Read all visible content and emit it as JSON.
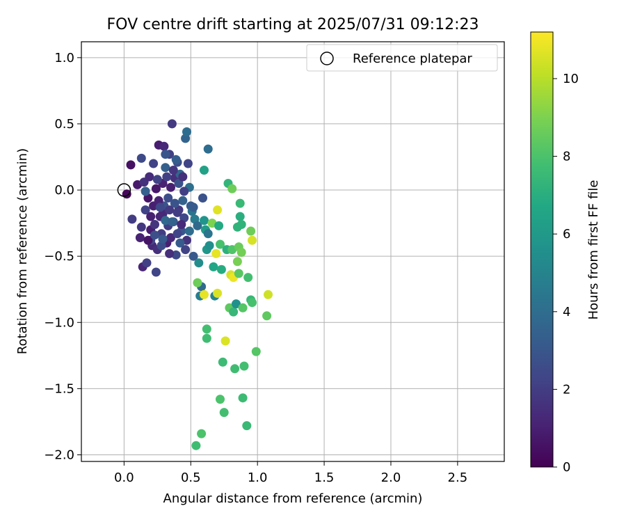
{
  "chart_data": {
    "type": "scatter",
    "title": "FOV centre drift starting at 2025/07/31 09:12:23",
    "xlabel": "Angular distance from reference (arcmin)",
    "ylabel": "Rotation from reference (arcmin)",
    "xlim": [
      -0.32,
      2.85
    ],
    "ylim": [
      -2.05,
      1.12
    ],
    "xticks": [
      0.0,
      0.5,
      1.0,
      1.5,
      2.0,
      2.5
    ],
    "xtick_labels": [
      "0.0",
      "0.5",
      "1.0",
      "1.5",
      "2.0",
      "2.5"
    ],
    "yticks": [
      1.0,
      0.5,
      0.0,
      -0.5,
      -1.0,
      -1.5,
      -2.0
    ],
    "ytick_labels": [
      "1.0",
      "0.5",
      "0.0",
      "−0.5",
      "−1.0",
      "−1.5",
      "−2.0"
    ],
    "grid": true,
    "legend": {
      "position": "top-right",
      "entries": [
        "Reference platepar"
      ]
    },
    "reference": {
      "x": 0.0,
      "y": 0.0,
      "marker": "open-circle",
      "color": "#000000"
    },
    "colorbar": {
      "label": "Hours from first FF file",
      "colormap": "viridis",
      "range": [
        0,
        11.2
      ],
      "ticks": [
        0,
        2,
        4,
        6,
        8,
        10
      ],
      "tick_labels": [
        "0",
        "2",
        "4",
        "6",
        "8",
        "10"
      ]
    },
    "points": [
      {
        "x": 0.02,
        "y": -0.03,
        "h": 0.2
      },
      {
        "x": 0.05,
        "y": 0.19,
        "h": 0.5
      },
      {
        "x": 0.06,
        "y": -0.22,
        "h": 2.0
      },
      {
        "x": 0.1,
        "y": 0.04,
        "h": 0.8
      },
      {
        "x": 0.12,
        "y": -0.36,
        "h": 1.1
      },
      {
        "x": 0.13,
        "y": 0.24,
        "h": 2.5
      },
      {
        "x": 0.14,
        "y": -0.58,
        "h": 1.2
      },
      {
        "x": 0.15,
        "y": 0.06,
        "h": 1.6
      },
      {
        "x": 0.16,
        "y": -0.15,
        "h": 2.2
      },
      {
        "x": 0.17,
        "y": -0.55,
        "h": 2.1
      },
      {
        "x": 0.18,
        "y": -0.06,
        "h": 0.6
      },
      {
        "x": 0.19,
        "y": 0.1,
        "h": 1.4
      },
      {
        "x": 0.2,
        "y": -0.3,
        "h": 0.9
      },
      {
        "x": 0.21,
        "y": -0.42,
        "h": 1.3
      },
      {
        "x": 0.22,
        "y": -0.12,
        "h": 1.0
      },
      {
        "x": 0.23,
        "y": -0.26,
        "h": 1.7
      },
      {
        "x": 0.24,
        "y": 0.01,
        "h": 0.7
      },
      {
        "x": 0.24,
        "y": -0.62,
        "h": 2.3
      },
      {
        "x": 0.25,
        "y": -0.45,
        "h": 1.5
      },
      {
        "x": 0.26,
        "y": 0.34,
        "h": 0.9
      },
      {
        "x": 0.27,
        "y": -0.2,
        "h": 1.2
      },
      {
        "x": 0.28,
        "y": -0.33,
        "h": 2.0
      },
      {
        "x": 0.29,
        "y": 0.05,
        "h": 1.1
      },
      {
        "x": 0.3,
        "y": -0.12,
        "h": 2.9
      },
      {
        "x": 0.31,
        "y": 0.17,
        "h": 3.4
      },
      {
        "x": 0.32,
        "y": -0.4,
        "h": 1.0
      },
      {
        "x": 0.33,
        "y": -0.06,
        "h": 2.6
      },
      {
        "x": 0.34,
        "y": 0.27,
        "h": 2.1
      },
      {
        "x": 0.35,
        "y": -0.36,
        "h": 1.3
      },
      {
        "x": 0.36,
        "y": 0.5,
        "h": 1.9
      },
      {
        "x": 0.37,
        "y": -0.24,
        "h": 2.8
      },
      {
        "x": 0.38,
        "y": 0.09,
        "h": 1.5
      },
      {
        "x": 0.39,
        "y": -0.49,
        "h": 2.5
      },
      {
        "x": 0.4,
        "y": 0.21,
        "h": 2.7
      },
      {
        "x": 0.41,
        "y": -0.15,
        "h": 1.8
      },
      {
        "x": 0.42,
        "y": 0.12,
        "h": 3.7
      },
      {
        "x": 0.43,
        "y": -0.31,
        "h": 3.0
      },
      {
        "x": 0.44,
        "y": -0.08,
        "h": 3.5
      },
      {
        "x": 0.45,
        "y": -0.21,
        "h": 2.4
      },
      {
        "x": 0.46,
        "y": 0.39,
        "h": 3.6
      },
      {
        "x": 0.47,
        "y": 0.44,
        "h": 4.0
      },
      {
        "x": 0.47,
        "y": -0.38,
        "h": 1.6
      },
      {
        "x": 0.48,
        "y": 0.2,
        "h": 2.3
      },
      {
        "x": 0.49,
        "y": 0.02,
        "h": 4.1
      },
      {
        "x": 0.5,
        "y": -0.12,
        "h": 3.2
      },
      {
        "x": 0.51,
        "y": -0.16,
        "h": 4.3
      },
      {
        "x": 0.52,
        "y": -0.5,
        "h": 3.1
      },
      {
        "x": 0.53,
        "y": -0.22,
        "h": 4.6
      },
      {
        "x": 0.55,
        "y": -0.27,
        "h": 3.8
      },
      {
        "x": 0.56,
        "y": -0.55,
        "h": 5.4
      },
      {
        "x": 0.57,
        "y": -0.8,
        "h": 4.7
      },
      {
        "x": 0.58,
        "y": -0.73,
        "h": 3.9
      },
      {
        "x": 0.59,
        "y": -0.06,
        "h": 2.8
      },
      {
        "x": 0.6,
        "y": -0.23,
        "h": 5.8
      },
      {
        "x": 0.6,
        "y": 0.15,
        "h": 6.4
      },
      {
        "x": 0.61,
        "y": -0.3,
        "h": 6.1
      },
      {
        "x": 0.62,
        "y": -0.45,
        "h": 5.9
      },
      {
        "x": 0.62,
        "y": -1.05,
        "h": 7.8
      },
      {
        "x": 0.62,
        "y": -1.12,
        "h": 7.7
      },
      {
        "x": 0.63,
        "y": -0.33,
        "h": 4.4
      },
      {
        "x": 0.63,
        "y": 0.31,
        "h": 4.0
      },
      {
        "x": 0.64,
        "y": -0.42,
        "h": 5.5
      },
      {
        "x": 0.66,
        "y": -0.25,
        "h": 9.0
      },
      {
        "x": 0.67,
        "y": -0.58,
        "h": 6.6
      },
      {
        "x": 0.68,
        "y": -0.8,
        "h": 5.0
      },
      {
        "x": 0.69,
        "y": -0.48,
        "h": 10.8
      },
      {
        "x": 0.7,
        "y": -0.15,
        "h": 10.7
      },
      {
        "x": 0.7,
        "y": -0.78,
        "h": 10.6
      },
      {
        "x": 0.71,
        "y": -0.27,
        "h": 6.8
      },
      {
        "x": 0.72,
        "y": -0.41,
        "h": 7.9
      },
      {
        "x": 0.72,
        "y": -1.58,
        "h": 8.0
      },
      {
        "x": 0.73,
        "y": -0.6,
        "h": 6.9
      },
      {
        "x": 0.74,
        "y": -1.3,
        "h": 7.6
      },
      {
        "x": 0.75,
        "y": -1.68,
        "h": 7.8
      },
      {
        "x": 0.76,
        "y": -1.14,
        "h": 10.6
      },
      {
        "x": 0.77,
        "y": -0.45,
        "h": 7.1
      },
      {
        "x": 0.78,
        "y": 0.05,
        "h": 7.3
      },
      {
        "x": 0.79,
        "y": -0.89,
        "h": 8.4
      },
      {
        "x": 0.8,
        "y": -0.64,
        "h": 10.5
      },
      {
        "x": 0.81,
        "y": 0.01,
        "h": 8.7
      },
      {
        "x": 0.81,
        "y": -0.45,
        "h": 8.1
      },
      {
        "x": 0.82,
        "y": -0.66,
        "h": 10.9
      },
      {
        "x": 0.82,
        "y": -0.92,
        "h": 7.4
      },
      {
        "x": 0.83,
        "y": -1.35,
        "h": 7.7
      },
      {
        "x": 0.84,
        "y": -0.86,
        "h": 5.6
      },
      {
        "x": 0.85,
        "y": -0.28,
        "h": 7.2
      },
      {
        "x": 0.85,
        "y": -0.54,
        "h": 8.9
      },
      {
        "x": 0.86,
        "y": -0.63,
        "h": 8.3
      },
      {
        "x": 0.86,
        "y": -0.43,
        "h": 8.6
      },
      {
        "x": 0.87,
        "y": -0.1,
        "h": 7.5
      },
      {
        "x": 0.87,
        "y": -0.2,
        "h": 7.0
      },
      {
        "x": 0.88,
        "y": -0.26,
        "h": 7.2
      },
      {
        "x": 0.88,
        "y": -0.47,
        "h": 8.8
      },
      {
        "x": 0.89,
        "y": -1.57,
        "h": 7.6
      },
      {
        "x": 0.89,
        "y": -0.89,
        "h": 8.2
      },
      {
        "x": 0.9,
        "y": -1.33,
        "h": 7.8
      },
      {
        "x": 0.92,
        "y": -1.78,
        "h": 7.5
      },
      {
        "x": 0.93,
        "y": -0.66,
        "h": 7.8
      },
      {
        "x": 0.95,
        "y": -0.31,
        "h": 8.7
      },
      {
        "x": 0.95,
        "y": -0.83,
        "h": 7.4
      },
      {
        "x": 0.96,
        "y": -0.38,
        "h": 10.5
      },
      {
        "x": 0.96,
        "y": -0.85,
        "h": 7.9
      },
      {
        "x": 0.99,
        "y": -1.22,
        "h": 8.2
      },
      {
        "x": 1.07,
        "y": -0.95,
        "h": 8.4
      },
      {
        "x": 1.08,
        "y": -0.79,
        "h": 10.4
      },
      {
        "x": 0.55,
        "y": -0.7,
        "h": 8.7
      },
      {
        "x": 0.58,
        "y": -1.84,
        "h": 8.0
      },
      {
        "x": 0.54,
        "y": -1.93,
        "h": 7.7
      },
      {
        "x": 0.6,
        "y": -0.79,
        "h": 10.8
      },
      {
        "x": 0.2,
        "y": -0.38,
        "h": 2.4
      },
      {
        "x": 0.28,
        "y": -0.42,
        "h": 2.6
      },
      {
        "x": 0.33,
        "y": -0.27,
        "h": 2.0
      },
      {
        "x": 0.38,
        "y": -0.1,
        "h": 2.9
      },
      {
        "x": 0.22,
        "y": 0.2,
        "h": 2.2
      },
      {
        "x": 0.29,
        "y": -0.18,
        "h": 1.3
      },
      {
        "x": 0.35,
        "y": 0.02,
        "h": 1.0
      },
      {
        "x": 0.41,
        "y": 0.05,
        "h": 2.8
      },
      {
        "x": 0.16,
        "y": -0.01,
        "h": 3.4
      },
      {
        "x": 0.42,
        "y": -0.4,
        "h": 3.2
      },
      {
        "x": 0.31,
        "y": -0.23,
        "h": 3.8
      },
      {
        "x": 0.37,
        "y": 0.15,
        "h": 1.7
      },
      {
        "x": 0.44,
        "y": 0.1,
        "h": 1.5
      },
      {
        "x": 0.3,
        "y": 0.33,
        "h": 1.3
      },
      {
        "x": 0.18,
        "y": -0.38,
        "h": 0.6
      },
      {
        "x": 0.26,
        "y": -0.08,
        "h": 1.1
      },
      {
        "x": 0.34,
        "y": -0.48,
        "h": 1.5
      },
      {
        "x": 0.49,
        "y": -0.31,
        "h": 4.0
      },
      {
        "x": 0.52,
        "y": -0.13,
        "h": 3.2
      },
      {
        "x": 0.45,
        "y": -0.01,
        "h": 2.1
      },
      {
        "x": 0.27,
        "y": -0.13,
        "h": 2.4
      },
      {
        "x": 0.36,
        "y": -0.24,
        "h": 3.5
      },
      {
        "x": 0.4,
        "y": -0.17,
        "h": 2.0
      },
      {
        "x": 0.13,
        "y": -0.28,
        "h": 1.8
      },
      {
        "x": 0.31,
        "y": 0.27,
        "h": 3.0
      },
      {
        "x": 0.23,
        "y": -0.34,
        "h": 2.7
      },
      {
        "x": 0.43,
        "y": -0.26,
        "h": 1.4
      },
      {
        "x": 0.34,
        "y": -0.15,
        "h": 1.9
      },
      {
        "x": 0.4,
        "y": -0.33,
        "h": 2.3
      },
      {
        "x": 0.29,
        "y": -0.37,
        "h": 3.1
      },
      {
        "x": 0.25,
        "y": 0.08,
        "h": 2.2
      },
      {
        "x": 0.39,
        "y": 0.23,
        "h": 3.3
      },
      {
        "x": 0.2,
        "y": -0.2,
        "h": 1.0
      },
      {
        "x": 0.32,
        "y": 0.1,
        "h": 2.1
      },
      {
        "x": 0.46,
        "y": -0.45,
        "h": 2.2
      }
    ]
  }
}
